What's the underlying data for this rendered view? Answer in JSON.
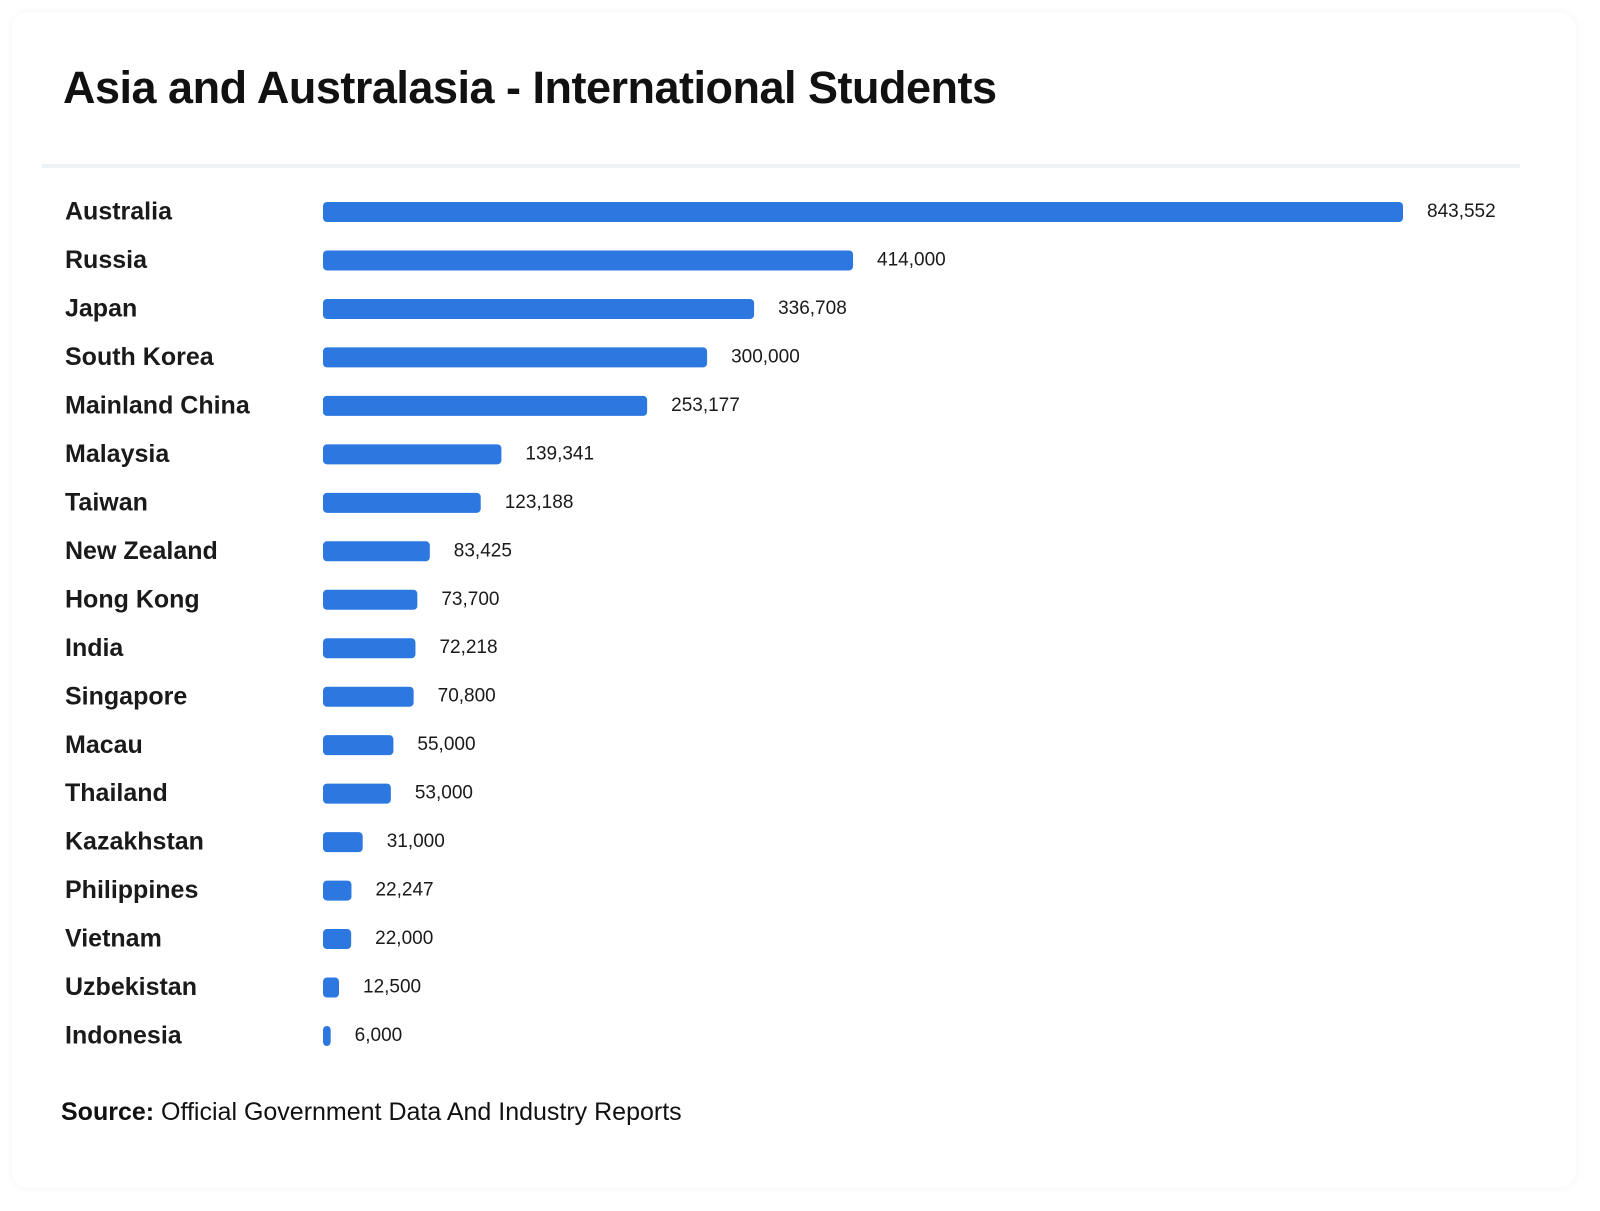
{
  "chart_data": {
    "type": "bar",
    "orientation": "horizontal",
    "title": "Asia and Australasia - International Students",
    "categories": [
      "Australia",
      "Russia",
      "Japan",
      "South Korea",
      "Mainland China",
      "Malaysia",
      "Taiwan",
      "New Zealand",
      "Hong Kong",
      "India",
      "Singapore",
      "Macau",
      "Thailand",
      "Kazakhstan",
      "Philippines",
      "Vietnam",
      "Uzbekistan",
      "Indonesia"
    ],
    "values": [
      843552,
      414000,
      336708,
      300000,
      253177,
      139341,
      123188,
      83425,
      73700,
      72218,
      70800,
      55000,
      53000,
      31000,
      22247,
      22000,
      12500,
      6000
    ],
    "value_labels": [
      "843,552",
      "414,000",
      "336,708",
      "300,000",
      "253,177",
      "139,341",
      "123,188",
      "83,425",
      "73,700",
      "72,218",
      "70,800",
      "55,000",
      "53,000",
      "31,000",
      "22,247",
      "22,000",
      "12,500",
      "6,000"
    ],
    "bar_color": "#2c78e0",
    "xlim": [
      0,
      843552
    ],
    "grid": false,
    "legend": "none",
    "xlabel": "",
    "ylabel": ""
  },
  "source": {
    "label": "Source:",
    "text": "Official Government Data And Industry Reports"
  }
}
